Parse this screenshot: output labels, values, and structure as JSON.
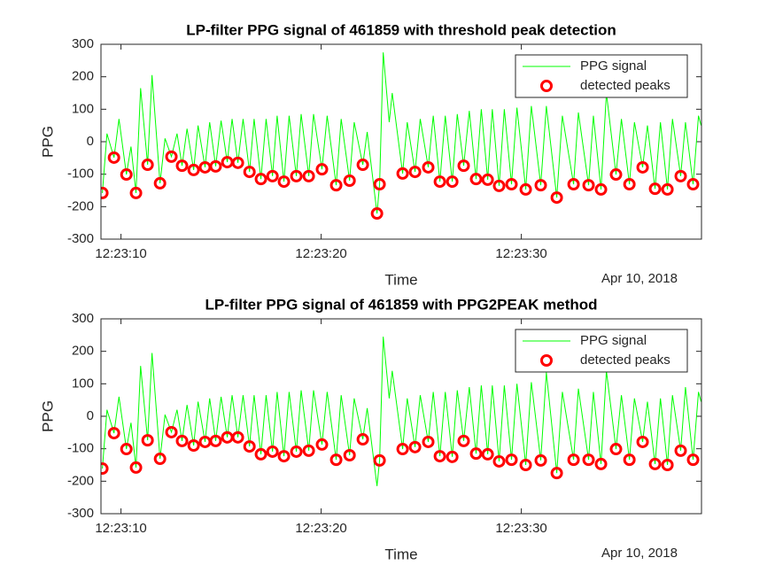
{
  "chart_data": [
    {
      "type": "line",
      "title": "LP-filter PPG signal of 461859 with threshold peak detection",
      "xlabel": "Time",
      "ylabel": "PPG",
      "date_label": "Apr 10, 2018",
      "xlim": [
        9,
        39
      ],
      "ylim": [
        -300,
        300
      ],
      "xticks": [
        {
          "value": 10,
          "label": "12:23:10"
        },
        {
          "value": 20,
          "label": "12:23:20"
        },
        {
          "value": 30,
          "label": "12:23:30"
        }
      ],
      "yticks": [
        -300,
        -200,
        -100,
        0,
        100,
        200,
        300
      ],
      "legend": "upper right",
      "series": [
        {
          "name": "PPG signal",
          "type": "line",
          "color": "#00ff00",
          "x": [
            9.07,
            9.3,
            9.65,
            9.9,
            10.27,
            10.5,
            10.75,
            10.98,
            11.33,
            11.55,
            11.95,
            12.2,
            12.52,
            12.8,
            13.05,
            13.3,
            13.63,
            13.85,
            14.2,
            14.43,
            14.73,
            15.0,
            15.31,
            15.55,
            15.84,
            16.1,
            16.42,
            16.65,
            16.99,
            17.25,
            17.57,
            17.8,
            18.14,
            18.4,
            18.76,
            19.0,
            19.38,
            19.62,
            20.04,
            20.3,
            20.75,
            21.0,
            21.42,
            21.65,
            22.08,
            22.3,
            22.79,
            22.92,
            23.1,
            23.4,
            23.55,
            24.07,
            24.3,
            24.69,
            24.95,
            25.35,
            25.6,
            25.93,
            26.2,
            26.55,
            26.8,
            27.12,
            27.4,
            27.74,
            28.0,
            28.32,
            28.55,
            28.89,
            29.15,
            29.51,
            29.78,
            30.22,
            30.5,
            30.97,
            31.25,
            31.77,
            32.05,
            32.61,
            32.85,
            33.36,
            33.6,
            33.98,
            34.25,
            34.73,
            35.0,
            35.4,
            35.65,
            36.06,
            36.3,
            36.68,
            36.95,
            37.3,
            37.55,
            37.96,
            38.2,
            38.58,
            38.85,
            38.98
          ],
          "values": [
            -158,
            25,
            -49,
            70,
            -101,
            -15,
            -158,
            165,
            -71,
            205,
            -128,
            10,
            -46,
            25,
            -74,
            40,
            -87,
            50,
            -79,
            60,
            -76,
            65,
            -63,
            70,
            -65,
            70,
            -93,
            70,
            -115,
            70,
            -106,
            80,
            -123,
            80,
            -106,
            85,
            -106,
            85,
            -85,
            80,
            -134,
            70,
            -120,
            60,
            -71,
            30,
            -221,
            -131,
            275,
            60,
            150,
            -98,
            60,
            -93,
            70,
            -79,
            80,
            -123,
            80,
            -123,
            85,
            -74,
            95,
            -115,
            100,
            -117,
            100,
            -136,
            100,
            -131,
            105,
            -147,
            110,
            -134,
            110,
            -172,
            80,
            -131,
            90,
            -134,
            80,
            -147,
            150,
            -101,
            70,
            -131,
            60,
            -79,
            50,
            -145,
            60,
            -147,
            70,
            -106,
            60,
            -131,
            80,
            50
          ]
        },
        {
          "name": "detected peaks",
          "type": "scatter",
          "color": "#ff0000",
          "x": [
            9.07,
            9.65,
            10.27,
            10.75,
            11.33,
            11.95,
            12.52,
            13.05,
            13.63,
            14.2,
            14.73,
            15.31,
            15.84,
            16.42,
            16.99,
            17.57,
            18.14,
            18.76,
            19.38,
            20.04,
            20.75,
            21.42,
            22.08,
            22.79,
            22.92,
            24.07,
            24.69,
            25.35,
            25.93,
            26.55,
            27.12,
            27.74,
            28.32,
            28.89,
            29.51,
            30.22,
            30.97,
            31.77,
            32.61,
            33.36,
            33.98,
            34.73,
            35.4,
            36.06,
            36.68,
            37.3,
            37.96,
            38.58
          ],
          "values": [
            -158,
            -49,
            -101,
            -158,
            -71,
            -128,
            -46,
            -74,
            -87,
            -79,
            -76,
            -63,
            -65,
            -93,
            -115,
            -106,
            -123,
            -106,
            -106,
            -85,
            -134,
            -120,
            -71,
            -221,
            -131,
            -98,
            -93,
            -79,
            -123,
            -123,
            -74,
            -115,
            -117,
            -136,
            -131,
            -147,
            -134,
            -172,
            -131,
            -134,
            -147,
            -101,
            -131,
            -79,
            -145,
            -147,
            -106,
            -131
          ]
        }
      ]
    },
    {
      "type": "line",
      "title": "LP-filter PPG signal of 461859 with PPG2PEAK method",
      "xlabel": "Time",
      "ylabel": "PPG",
      "date_label": "Apr 10, 2018",
      "xlim": [
        9,
        39
      ],
      "ylim": [
        -300,
        300
      ],
      "xticks": [
        {
          "value": 10,
          "label": "12:23:10"
        },
        {
          "value": 20,
          "label": "12:23:20"
        },
        {
          "value": 30,
          "label": "12:23:30"
        }
      ],
      "yticks": [
        -300,
        -200,
        -100,
        0,
        100,
        200,
        300
      ],
      "legend": "upper right",
      "series": [
        {
          "name": "PPG signal",
          "type": "line",
          "color": "#00ff00",
          "x": [
            9.07,
            9.3,
            9.65,
            9.9,
            10.27,
            10.5,
            10.75,
            10.98,
            11.33,
            11.55,
            11.95,
            12.2,
            12.52,
            12.8,
            13.05,
            13.3,
            13.63,
            13.85,
            14.2,
            14.43,
            14.73,
            15.0,
            15.31,
            15.55,
            15.84,
            16.1,
            16.42,
            16.65,
            16.99,
            17.25,
            17.57,
            17.8,
            18.14,
            18.4,
            18.76,
            19.0,
            19.38,
            19.62,
            20.04,
            20.3,
            20.75,
            21.0,
            21.42,
            21.65,
            22.08,
            22.3,
            22.79,
            22.92,
            23.1,
            23.4,
            23.55,
            24.07,
            24.3,
            24.69,
            24.95,
            25.35,
            25.6,
            25.93,
            26.2,
            26.55,
            26.8,
            27.12,
            27.4,
            27.74,
            28.0,
            28.32,
            28.55,
            28.89,
            29.15,
            29.51,
            29.78,
            30.22,
            30.5,
            30.97,
            31.25,
            31.77,
            32.05,
            32.61,
            32.85,
            33.36,
            33.6,
            33.98,
            34.25,
            34.73,
            35.0,
            35.4,
            35.65,
            36.06,
            36.3,
            36.68,
            36.95,
            37.3,
            37.55,
            37.96,
            38.2,
            38.58,
            38.85,
            38.98
          ],
          "values": [
            -161,
            20,
            -52,
            60,
            -101,
            -20,
            -158,
            155,
            -74,
            195,
            -131,
            5,
            -49,
            20,
            -76,
            35,
            -90,
            45,
            -79,
            55,
            -76,
            60,
            -65,
            65,
            -65,
            65,
            -93,
            65,
            -117,
            65,
            -109,
            75,
            -123,
            75,
            -109,
            80,
            -106,
            80,
            -87,
            75,
            -134,
            65,
            -120,
            55,
            -71,
            25,
            -215,
            -136,
            245,
            55,
            140,
            -101,
            55,
            -95,
            65,
            -79,
            75,
            -123,
            75,
            -125,
            80,
            -76,
            90,
            -115,
            95,
            -117,
            95,
            -139,
            95,
            -134,
            100,
            -150,
            105,
            -136,
            135,
            -175,
            75,
            -134,
            85,
            -134,
            75,
            -147,
            140,
            -101,
            65,
            -134,
            55,
            -79,
            45,
            -147,
            55,
            -150,
            65,
            -106,
            90,
            -134,
            75,
            45
          ]
        },
        {
          "name": "detected peaks",
          "type": "scatter",
          "color": "#ff0000",
          "x": [
            9.07,
            9.65,
            10.27,
            10.75,
            11.33,
            11.95,
            12.52,
            13.05,
            13.63,
            14.2,
            14.73,
            15.31,
            15.84,
            16.42,
            16.99,
            17.57,
            18.14,
            18.76,
            19.38,
            20.04,
            20.75,
            21.42,
            22.08,
            22.92,
            24.07,
            24.69,
            25.35,
            25.93,
            26.55,
            27.12,
            27.74,
            28.32,
            28.89,
            29.51,
            30.22,
            30.97,
            31.77,
            32.61,
            33.36,
            33.98,
            34.73,
            35.4,
            36.06,
            36.68,
            37.3,
            37.96,
            38.58
          ],
          "values": [
            -161,
            -52,
            -101,
            -158,
            -74,
            -131,
            -49,
            -76,
            -90,
            -79,
            -76,
            -65,
            -65,
            -93,
            -117,
            -109,
            -123,
            -109,
            -106,
            -87,
            -134,
            -120,
            -71,
            -136,
            -101,
            -95,
            -79,
            -123,
            -125,
            -76,
            -115,
            -117,
            -139,
            -134,
            -150,
            -136,
            -175,
            -134,
            -134,
            -147,
            -101,
            -134,
            -79,
            -147,
            -150,
            -106,
            -134
          ]
        }
      ]
    }
  ]
}
